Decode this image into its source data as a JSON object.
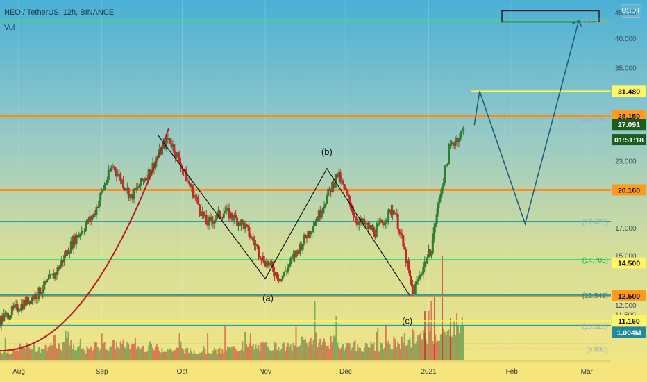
{
  "header": {
    "title": "NEO / TetherUS, 12h, BINANCE",
    "volume_label": "Vol",
    "currency_badge": "USDT"
  },
  "colors": {
    "background_top": "#4bb4d8",
    "background_bottom": "#f6e27a",
    "candle_up": "#2f7d32",
    "candle_down": "#c62828",
    "orange_level": "#ff8c1a",
    "yellow_level": "#fff44f",
    "green_level": "#00e676",
    "teal_level": "#1aa3b0",
    "projection_line": "#1f5f7a",
    "wave_line": "#111111",
    "curve_line": "#b71c1c"
  },
  "chart_data": {
    "type": "candlestick",
    "symbol": "NEO / TetherUS",
    "interval": "12h",
    "exchange": "BINANCE",
    "price_axis": {
      "labels": [
        "45.000",
        "40.000",
        "35.000",
        "23.000",
        "17.000",
        "15.000",
        "12.000",
        "11.500"
      ]
    },
    "time_axis": {
      "labels": [
        "Aug",
        "Sep",
        "Oct",
        "Nov",
        "Dec",
        "2021",
        "Feb",
        "Mar"
      ]
    },
    "price_labels": [
      {
        "text": "31.480",
        "style": "yellow"
      },
      {
        "text": "28.150",
        "style": "orange"
      },
      {
        "text": "27.091",
        "style": "green"
      },
      {
        "text": "01:51:18",
        "style": "green"
      },
      {
        "text": "20.160",
        "style": "orange"
      },
      {
        "text": "14.500",
        "style": "yellow"
      },
      {
        "text": "12.500",
        "style": "orange"
      },
      {
        "text": "11.160",
        "style": "yellow"
      },
      {
        "text": "1.004M",
        "style": "teal"
      }
    ],
    "level_annotations": [
      "(43.339)",
      "(27.795)",
      "(17.475)",
      "(14.705)",
      "(12.542)",
      "(10.920)",
      "(9.830)"
    ],
    "wave_labels": [
      "(a)",
      "(b)",
      "(c)"
    ],
    "horizontal_levels": [
      {
        "price": 43.339,
        "color": "green"
      },
      {
        "price": 31.48,
        "color": "yellow"
      },
      {
        "price": 28.15,
        "color": "orange"
      },
      {
        "price": 27.795,
        "color": "orange"
      },
      {
        "price": 20.16,
        "color": "orange"
      },
      {
        "price": 17.475,
        "color": "teal"
      },
      {
        "price": 14.705,
        "color": "green"
      },
      {
        "price": 12.5,
        "color": "orange"
      },
      {
        "price": 12.542,
        "color": "teal"
      },
      {
        "price": 11.16,
        "color": "yellow"
      },
      {
        "price": 10.92,
        "color": "teal"
      }
    ],
    "price_series": {
      "dates": [
        "2020-07-25",
        "2020-08-01",
        "2020-08-08",
        "2020-08-15",
        "2020-08-22",
        "2020-08-29",
        "2020-09-05",
        "2020-09-12",
        "2020-09-19",
        "2020-09-26",
        "2020-10-03",
        "2020-10-10",
        "2020-10-17",
        "2020-10-24",
        "2020-10-31",
        "2020-11-07",
        "2020-11-14",
        "2020-11-21",
        "2020-11-28",
        "2020-12-05",
        "2020-12-12",
        "2020-12-19",
        "2020-12-26",
        "2021-01-02",
        "2021-01-09",
        "2021-01-16"
      ],
      "close": [
        11.2,
        11.9,
        12.6,
        13.9,
        16.2,
        18.0,
        22.5,
        19.5,
        22.0,
        25.5,
        21.0,
        17.3,
        18.3,
        17.2,
        14.8,
        13.5,
        15.6,
        18.0,
        21.6,
        17.6,
        16.7,
        18.6,
        12.6,
        15.5,
        24.5,
        27.1
      ]
    },
    "volume_series": [
      0.35,
      0.5,
      0.45,
      0.6,
      0.4,
      0.55,
      0.6,
      0.5,
      0.45,
      0.4,
      0.35,
      0.35,
      0.45,
      0.5,
      0.55,
      0.5,
      0.8,
      0.7,
      0.6,
      0.5,
      0.5,
      0.7,
      0.9,
      1.0,
      1.4,
      1.004
    ],
    "projection_path": [
      {
        "date": "2021-01-18",
        "price": 27.0
      },
      {
        "date": "2021-01-20",
        "price": 31.48
      },
      {
        "date": "2021-02-06",
        "price": 17.3
      },
      {
        "date": "2021-02-26",
        "price": 43.3
      }
    ],
    "wave_points": [
      {
        "date": "2020-09-22",
        "price": 25.8
      },
      {
        "date": "2020-11-01",
        "price": 13.5
      },
      {
        "date": "2020-11-24",
        "price": 22.2
      },
      {
        "date": "2020-12-25",
        "price": 12.5
      }
    ]
  }
}
